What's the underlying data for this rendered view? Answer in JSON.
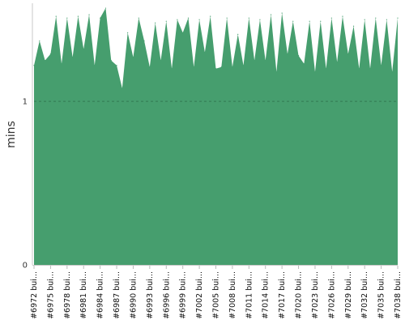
{
  "chart_data": {
    "type": "area",
    "ylabel": "mins",
    "xlabel": "",
    "title": "",
    "ylim": [
      0,
      1.6
    ],
    "y_ticks": [
      {
        "value": 0,
        "label": "0"
      },
      {
        "value": 1,
        "label": "1"
      }
    ],
    "grid": "dashed horizontal line at y = 1",
    "x_tick_labels": [
      "#6972 bui...",
      "#6975 bui...",
      "#6978 bui...",
      "#6981 bui...",
      "#6984 bui...",
      "#6987 bui...",
      "#6990 bui...",
      "#6993 bui...",
      "#6996 bui...",
      "#6999 bui...",
      "#7002 bui...",
      "#7005 bui...",
      "#7008 bui...",
      "#7011 bui...",
      "#7014 bui...",
      "#7017 bui...",
      "#7020 bui...",
      "#7023 bui...",
      "#7026 bui...",
      "#7029 bui...",
      "#7032 bui...",
      "#7035 bui...",
      "#7038 bui..."
    ],
    "series": [
      {
        "color": "#469e6e",
        "values": [
          1.22,
          1.37,
          1.25,
          1.29,
          1.52,
          1.23,
          1.51,
          1.27,
          1.52,
          1.32,
          1.53,
          1.22,
          1.51,
          1.57,
          1.25,
          1.22,
          1.08,
          1.42,
          1.27,
          1.51,
          1.37,
          1.21,
          1.48,
          1.25,
          1.49,
          1.2,
          1.5,
          1.42,
          1.51,
          1.21,
          1.5,
          1.3,
          1.52,
          1.2,
          1.21,
          1.51,
          1.21,
          1.41,
          1.22,
          1.51,
          1.25,
          1.5,
          1.25,
          1.53,
          1.18,
          1.54,
          1.29,
          1.49,
          1.28,
          1.23,
          1.49,
          1.18,
          1.49,
          1.2,
          1.51,
          1.24,
          1.52,
          1.29,
          1.46,
          1.2,
          1.5,
          1.2,
          1.51,
          1.22,
          1.5,
          1.18,
          1.51
        ]
      }
    ]
  }
}
